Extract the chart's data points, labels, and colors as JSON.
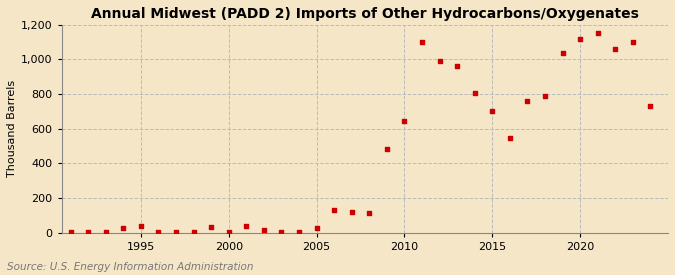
{
  "title": "Annual Midwest (PADD 2) Imports of Other Hydrocarbons/Oxygenates",
  "ylabel": "Thousand Barrels",
  "source": "Source: U.S. Energy Information Administration",
  "background_color": "#f5e6c8",
  "plot_bg_color": "#f5e6c8",
  "marker_color": "#cc0000",
  "years": [
    1991,
    1992,
    1993,
    1994,
    1995,
    1996,
    1997,
    1998,
    1999,
    2000,
    2001,
    2002,
    2003,
    2004,
    2005,
    2006,
    2007,
    2008,
    2009,
    2010,
    2011,
    2012,
    2013,
    2014,
    2015,
    2016,
    2017,
    2018,
    2019,
    2020,
    2021,
    2022,
    2023,
    2024
  ],
  "values": [
    2,
    2,
    2,
    25,
    40,
    2,
    2,
    2,
    30,
    2,
    35,
    15,
    2,
    2,
    25,
    130,
    120,
    110,
    480,
    645,
    1100,
    990,
    960,
    805,
    700,
    545,
    760,
    790,
    1035,
    1120,
    1155,
    1060,
    1100,
    730
  ],
  "ylim": [
    0,
    1200
  ],
  "yticks": [
    0,
    200,
    400,
    600,
    800,
    1000,
    1200
  ],
  "xticks": [
    1995,
    2000,
    2005,
    2010,
    2015,
    2020
  ],
  "xlim": [
    1990.5,
    2025
  ],
  "grid_color": "#bbbbbb",
  "title_fontsize": 10,
  "label_fontsize": 8,
  "tick_fontsize": 8,
  "source_fontsize": 7.5
}
